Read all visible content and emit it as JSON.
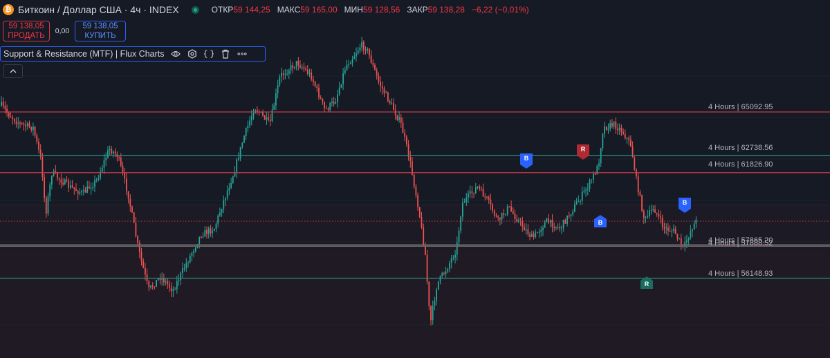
{
  "header": {
    "coin_glyph": "₿",
    "symbol_title": "Биткоин / Доллар США · 4ч · INDEX",
    "ohlc": [
      {
        "key": "ОТКР",
        "value": "59 144,25"
      },
      {
        "key": "МАКС",
        "value": "59 165,00"
      },
      {
        "key": "МИН",
        "value": "59 128,56"
      },
      {
        "key": "ЗАКР",
        "value": "59 138,28"
      }
    ],
    "change": "−6,22 (−0,01%)"
  },
  "trade": {
    "sell_price": "59 138,05",
    "sell_label": "ПРОДАТЬ",
    "spread": "0,00",
    "buy_price": "59 138,05",
    "buy_label": "КУПИТЬ"
  },
  "indicator": {
    "title": "Support & Resistance (MTF) | Flux Charts",
    "icons": [
      "eye-icon",
      "settings-icon",
      "source-code-icon",
      "delete-icon",
      "more-icon"
    ]
  },
  "levels": [
    {
      "label": "4 Hours | 65092.95",
      "price": 65092.95,
      "type": "resistance"
    },
    {
      "label": "4 Hours | 62738.56",
      "price": 62738.56,
      "type": "support"
    },
    {
      "label": "4 Hours | 61826.90",
      "price": 61826.9,
      "type": "resistance"
    },
    {
      "label": "4 Hours | 57865.20",
      "price": 57865.2,
      "type": "support"
    },
    {
      "label": "4 Hours | 57888.52",
      "price": 57888.52,
      "type": "resistance"
    },
    {
      "label": "4 Hours | 56148.93",
      "price": 56148.93,
      "type": "support"
    }
  ],
  "markers": [
    {
      "text": "B",
      "kind": "break-down",
      "color": "#2962ff"
    },
    {
      "text": "R",
      "kind": "retest-down",
      "color": "#b22833"
    },
    {
      "text": "B",
      "kind": "break-up",
      "color": "#2962ff"
    },
    {
      "text": "B",
      "kind": "break-down",
      "color": "#2962ff"
    },
    {
      "text": "R",
      "kind": "retest-up",
      "color": "#1b6b5f"
    }
  ],
  "colors": {
    "background": "#161a25",
    "up": "#26a69a",
    "down": "#ef5350",
    "resistance_line": "#c83a48",
    "support_line": "#2b8a7e",
    "accent": "#2962ff"
  }
}
